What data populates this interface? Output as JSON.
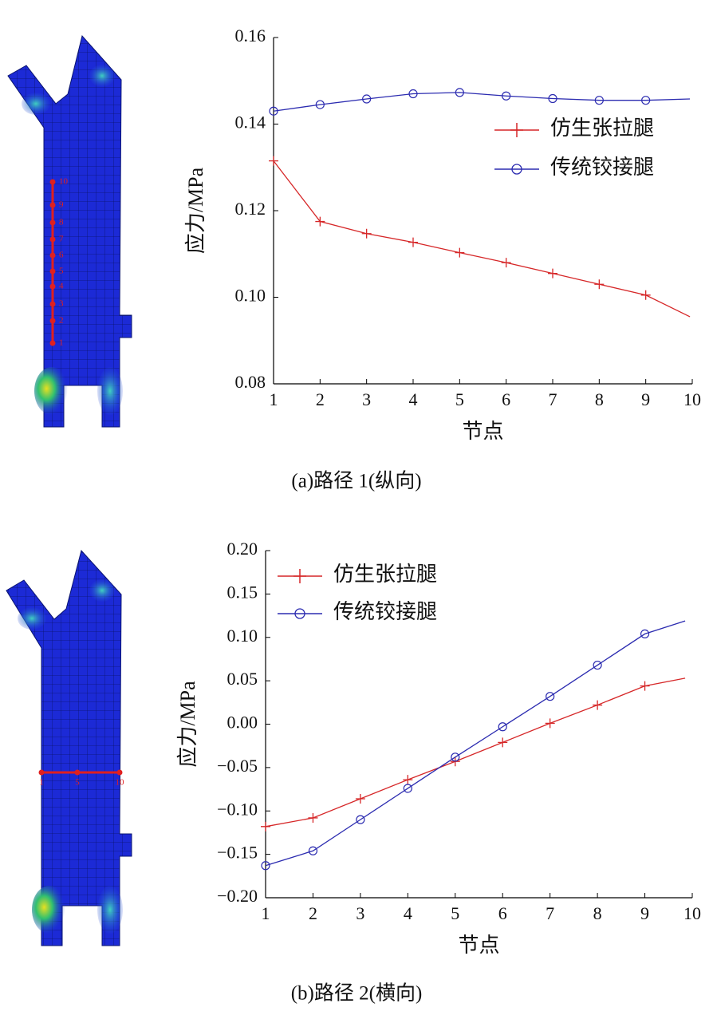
{
  "chart_data": [
    {
      "type": "line",
      "caption": "(a)路径 1(纵向)",
      "xlabel": "节点",
      "ylabel": "应力/MPa",
      "node_labels": [
        "1",
        "2",
        "3",
        "4",
        "5",
        "6",
        "7",
        "8",
        "9",
        "10"
      ],
      "xlim": [
        1,
        10
      ],
      "xticks": [
        1,
        2,
        3,
        4,
        5,
        6,
        7,
        8,
        9,
        10
      ],
      "ylim": [
        0.08,
        0.16
      ],
      "yticks": [
        0.08,
        {
          "value": 0.1,
          "label": "0.10"
        },
        0.12,
        0.14,
        0.16
      ],
      "legend": "upper right",
      "x": [
        1,
        2,
        3,
        4,
        5,
        6,
        7,
        8,
        9,
        9.95
      ],
      "series": [
        {
          "name": "仿生张拉腿",
          "color": "#d62728",
          "marker": "plus",
          "values": [
            0.1315,
            0.1175,
            0.1147,
            0.1127,
            0.1103,
            0.108,
            0.1055,
            0.103,
            0.1005,
            0.0955
          ]
        },
        {
          "name": "传统铰接腿",
          "color": "#2b2bb0",
          "marker": "circle",
          "values": [
            0.143,
            0.1445,
            0.1458,
            0.147,
            0.1473,
            0.1465,
            0.1459,
            0.1455,
            0.1455,
            0.1458
          ]
        }
      ]
    },
    {
      "type": "line",
      "caption": "(b)路径 2(横向)",
      "xlabel": "节点",
      "ylabel": "应力/MPa",
      "node_labels": [
        "1",
        "5",
        "10"
      ],
      "xlim": [
        1,
        10
      ],
      "xticks": [
        1,
        2,
        3,
        4,
        5,
        6,
        7,
        8,
        9,
        10
      ],
      "ylim": [
        -0.2,
        0.2
      ],
      "yticks": [
        {
          "value": -0.2,
          "label": "−0.20"
        },
        {
          "value": -0.15,
          "label": "−0.15"
        },
        {
          "value": -0.1,
          "label": "−0.10"
        },
        {
          "value": -0.05,
          "label": "−0.05"
        },
        {
          "value": 0,
          "label": "0.00"
        },
        {
          "value": 0.05,
          "label": "0.05"
        },
        {
          "value": 0.1,
          "label": "0.10"
        },
        {
          "value": 0.15,
          "label": "0.15"
        },
        {
          "value": 0.2,
          "label": "0.20"
        }
      ],
      "legend": "upper left",
      "x": [
        1,
        2,
        3,
        4,
        5,
        6,
        7,
        8,
        9,
        9.85
      ],
      "series": [
        {
          "name": "仿生张拉腿",
          "color": "#d62728",
          "marker": "plus",
          "values": [
            -0.118,
            -0.108,
            -0.086,
            -0.064,
            -0.043,
            -0.021,
            0.001,
            0.022,
            0.044,
            0.053
          ]
        },
        {
          "name": "传统铰接腿",
          "color": "#2b2bb0",
          "marker": "circle",
          "values": [
            -0.163,
            -0.146,
            -0.11,
            -0.074,
            -0.038,
            -0.003,
            0.032,
            0.068,
            0.104,
            0.119
          ]
        }
      ]
    }
  ]
}
